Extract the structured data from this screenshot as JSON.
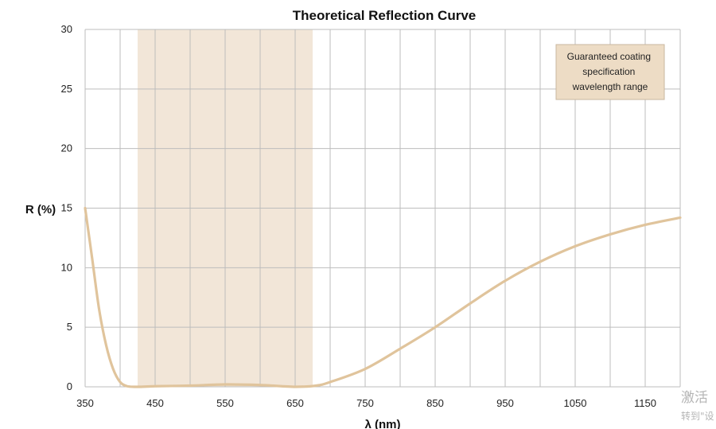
{
  "chart_data": {
    "type": "line",
    "title": "Theoretical Reflection Curve",
    "xlabel": "λ (nm)",
    "ylabel": "R (%)",
    "xlim": [
      350,
      1200
    ],
    "ylim": [
      0,
      30
    ],
    "grid": true,
    "xticks": [
      350,
      450,
      550,
      650,
      750,
      850,
      950,
      1050,
      1150
    ],
    "xtick_labels": [
      "350",
      "450",
      "550",
      "650",
      "750",
      "850",
      "950",
      "1050",
      "1150"
    ],
    "yticks": [
      0,
      5,
      10,
      15,
      20,
      25,
      30
    ],
    "ytick_labels": [
      "0",
      "5",
      "10",
      "15",
      "20",
      "25",
      "30"
    ],
    "legend_position": "top-right",
    "legend_entries": [
      "Guaranteed coating specification wavelength range"
    ],
    "highlight_band": {
      "x_start": 425,
      "x_end": 675,
      "label": "Guaranteed coating specification wavelength range"
    },
    "series": [
      {
        "x": [
          350,
          360,
          370,
          380,
          390,
          400,
          410,
          420,
          430,
          450,
          500,
          550,
          600,
          650,
          680,
          700,
          750,
          800,
          850,
          900,
          950,
          1000,
          1050,
          1100,
          1150,
          1200
        ],
        "y": [
          15,
          10.8,
          6.5,
          3.5,
          1.5,
          0.4,
          0.05,
          0.0,
          0.0,
          0.05,
          0.1,
          0.2,
          0.15,
          0.0,
          0.1,
          0.4,
          1.5,
          3.2,
          5.0,
          7.0,
          8.9,
          10.5,
          11.8,
          12.8,
          13.6,
          14.2
        ]
      }
    ],
    "colors": {
      "line": "#e0c49c",
      "band": "#f2e6d8",
      "legend_fill": "#eddcc5",
      "grid": "#bdbdbd"
    }
  },
  "overlay": {
    "line1": "激活",
    "line2": "转到\"设"
  }
}
